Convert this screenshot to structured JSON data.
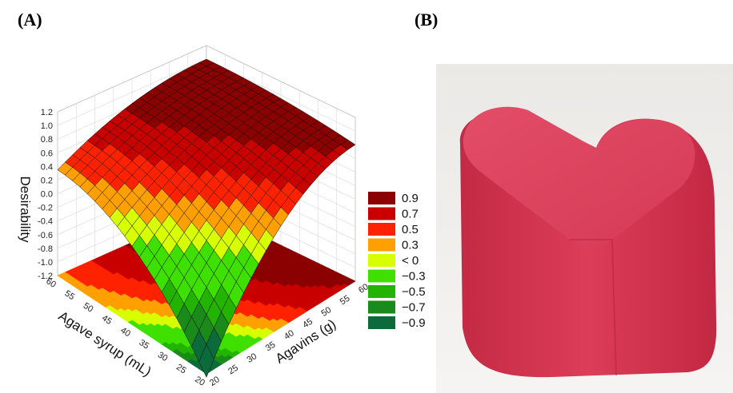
{
  "panels": [
    {
      "label": "(A)",
      "chart": {
        "z_axis_label": "Desirability",
        "z_ticks": [
          "1.2",
          "1.0",
          "0.8",
          "0.6",
          "0.4",
          "0.2",
          "0.0",
          "-0.2",
          "-0.4",
          "-0.6",
          "-0.8",
          "-1.0",
          "-1.2"
        ],
        "x_axis_label": "Agave syrup (mL)",
        "x_ticks": [
          "60",
          "55",
          "50",
          "45",
          "40",
          "35",
          "30",
          "25",
          "20"
        ],
        "y_axis_label": "Agavins (g)",
        "y_ticks": [
          "20",
          "25",
          "30",
          "35",
          "40",
          "45",
          "50",
          "55",
          "60"
        ],
        "legend": [
          {
            "label": "0.9",
            "color": "#8b0000"
          },
          {
            "label": "0.7",
            "color": "#c80000"
          },
          {
            "label": "0.5",
            "color": "#ff2200"
          },
          {
            "label": "0.3",
            "color": "#ffa000"
          },
          {
            "label": "< 0",
            "color": "#d8ff00"
          },
          {
            "label": "−0.3",
            "color": "#3fe000"
          },
          {
            "label": "−0.5",
            "color": "#22b400"
          },
          {
            "label": "−0.7",
            "color": "#1a8a1a"
          },
          {
            "label": "−0.9",
            "color": "#0b6b3a"
          }
        ]
      }
    },
    {
      "label": "(B)"
    }
  ]
}
